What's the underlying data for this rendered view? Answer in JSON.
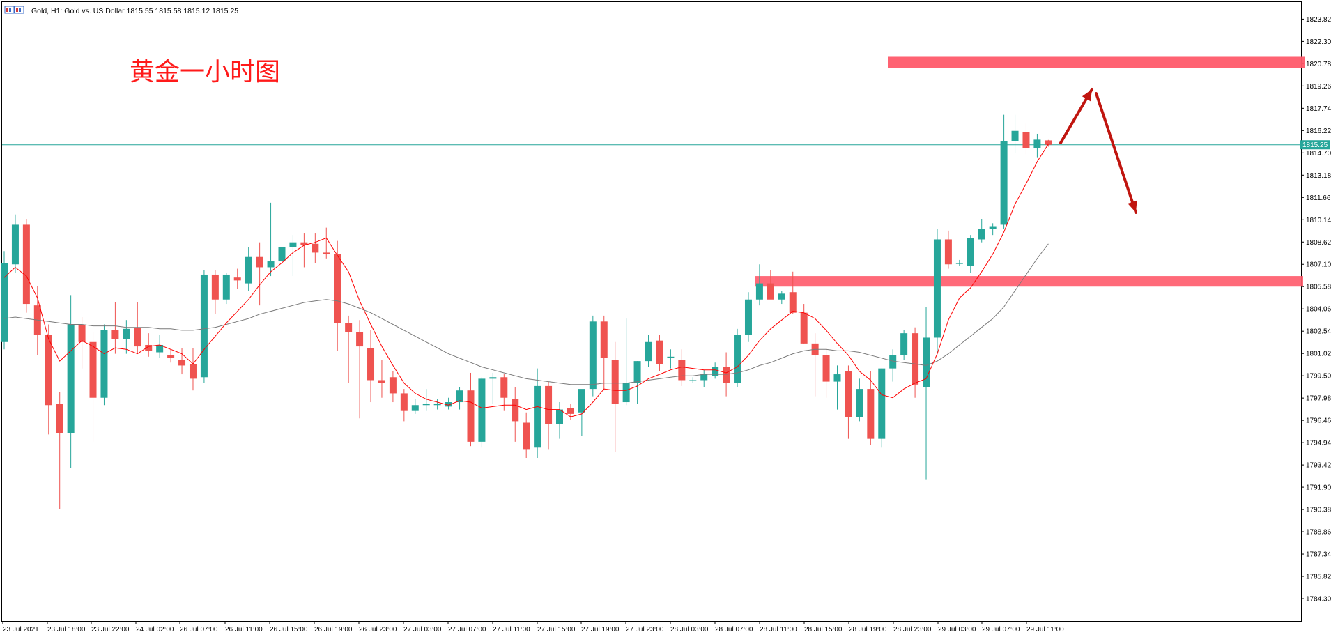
{
  "window": {
    "symbol_info": "Gold, H1:  Gold vs. US Dollar  1815.55 1815.58 1815.12 1815.25",
    "icon_name": "chart-window-icon"
  },
  "annotation": {
    "title": "黄金一小时图",
    "color": "#ff1a1a"
  },
  "colors": {
    "bull": "#26a69a",
    "bear": "#ef5350",
    "ma_fast": "#ff0000",
    "ma_slow": "#7a7a7a",
    "bid_line": "#26a69a",
    "zone": "#ff5a6a",
    "arrow": "#c0150f"
  },
  "chart_data": {
    "type": "candlestick",
    "title": "",
    "symbol": "Gold",
    "timeframe": "H1",
    "ylim": [
      1782.78,
      1824.98
    ],
    "y_ticks": [
      "1823.82",
      "1822.30",
      "1820.78",
      "1819.26",
      "1817.74",
      "1816.22",
      "1814.70",
      "1813.18",
      "1811.66",
      "1810.14",
      "1808.62",
      "1807.10",
      "1805.58",
      "1804.06",
      "1802.54",
      "1801.02",
      "1799.50",
      "1797.98",
      "1796.46",
      "1794.94",
      "1793.42",
      "1791.90",
      "1790.38",
      "1788.86",
      "1787.34",
      "1785.82",
      "1784.30"
    ],
    "x_ticks": [
      "23 Jul 2021",
      "23 Jul 18:00",
      "23 Jul 22:00",
      "24 Jul 02:00",
      "26 Jul 07:00",
      "26 Jul 11:00",
      "26 Jul 15:00",
      "26 Jul 19:00",
      "26 Jul 23:00",
      "27 Jul 03:00",
      "27 Jul 07:00",
      "27 Jul 11:00",
      "27 Jul 15:00",
      "27 Jul 19:00",
      "27 Jul 23:00",
      "28 Jul 03:00",
      "28 Jul 07:00",
      "28 Jul 11:00",
      "28 Jul 15:00",
      "28 Jul 19:00",
      "28 Jul 23:00",
      "29 Jul 03:00",
      "29 Jul 07:00",
      "29 Jul 11:00"
    ],
    "current_price": "1815.25",
    "candles": [
      {
        "o": 1801.8,
        "h": 1808.0,
        "l": 1801.3,
        "c": 1807.2
      },
      {
        "o": 1807.1,
        "h": 1810.5,
        "l": 1806.5,
        "c": 1809.8
      },
      {
        "o": 1809.8,
        "h": 1810.2,
        "l": 1803.8,
        "c": 1804.4
      },
      {
        "o": 1804.3,
        "h": 1805.6,
        "l": 1800.9,
        "c": 1802.3
      },
      {
        "o": 1802.3,
        "h": 1803.0,
        "l": 1795.5,
        "c": 1797.5
      },
      {
        "o": 1797.6,
        "h": 1798.4,
        "l": 1790.4,
        "c": 1795.6
      },
      {
        "o": 1795.6,
        "h": 1805.0,
        "l": 1793.2,
        "c": 1803.0
      },
      {
        "o": 1803.0,
        "h": 1803.5,
        "l": 1800.0,
        "c": 1801.8
      },
      {
        "o": 1801.8,
        "h": 1802.5,
        "l": 1795.0,
        "c": 1798.0
      },
      {
        "o": 1798.0,
        "h": 1803.0,
        "l": 1797.5,
        "c": 1802.6
      },
      {
        "o": 1802.6,
        "h": 1804.5,
        "l": 1801.0,
        "c": 1802.0
      },
      {
        "o": 1802.0,
        "h": 1803.3,
        "l": 1801.0,
        "c": 1802.7
      },
      {
        "o": 1802.8,
        "h": 1804.5,
        "l": 1801.0,
        "c": 1801.5
      },
      {
        "o": 1801.6,
        "h": 1802.4,
        "l": 1800.8,
        "c": 1801.2
      },
      {
        "o": 1801.1,
        "h": 1802.3,
        "l": 1800.7,
        "c": 1801.6
      },
      {
        "o": 1800.9,
        "h": 1801.3,
        "l": 1800.4,
        "c": 1800.7
      },
      {
        "o": 1800.6,
        "h": 1801.4,
        "l": 1799.6,
        "c": 1800.2
      },
      {
        "o": 1800.3,
        "h": 1801.4,
        "l": 1798.5,
        "c": 1799.3
      },
      {
        "o": 1799.4,
        "h": 1806.7,
        "l": 1799.0,
        "c": 1806.4
      },
      {
        "o": 1806.4,
        "h": 1806.7,
        "l": 1803.7,
        "c": 1804.7
      },
      {
        "o": 1804.7,
        "h": 1806.5,
        "l": 1804.4,
        "c": 1806.4
      },
      {
        "o": 1806.2,
        "h": 1806.8,
        "l": 1805.4,
        "c": 1806.0
      },
      {
        "o": 1805.8,
        "h": 1808.3,
        "l": 1805.3,
        "c": 1807.6
      },
      {
        "o": 1807.6,
        "h": 1808.6,
        "l": 1804.3,
        "c": 1806.9
      },
      {
        "o": 1806.9,
        "h": 1811.3,
        "l": 1806.3,
        "c": 1807.3
      },
      {
        "o": 1807.3,
        "h": 1809.1,
        "l": 1806.6,
        "c": 1808.3
      },
      {
        "o": 1808.3,
        "h": 1809.1,
        "l": 1806.3,
        "c": 1808.6
      },
      {
        "o": 1808.6,
        "h": 1809.2,
        "l": 1806.9,
        "c": 1808.4
      },
      {
        "o": 1808.5,
        "h": 1809.2,
        "l": 1807.2,
        "c": 1807.9
      },
      {
        "o": 1807.9,
        "h": 1809.6,
        "l": 1807.5,
        "c": 1807.8
      },
      {
        "o": 1807.8,
        "h": 1808.7,
        "l": 1801.2,
        "c": 1803.1
      },
      {
        "o": 1803.1,
        "h": 1803.6,
        "l": 1799.0,
        "c": 1802.5
      },
      {
        "o": 1802.5,
        "h": 1803.3,
        "l": 1796.6,
        "c": 1801.5
      },
      {
        "o": 1801.4,
        "h": 1802.6,
        "l": 1797.7,
        "c": 1799.2
      },
      {
        "o": 1799.2,
        "h": 1800.6,
        "l": 1798.0,
        "c": 1799.0
      },
      {
        "o": 1799.4,
        "h": 1799.8,
        "l": 1797.7,
        "c": 1798.3
      },
      {
        "o": 1798.3,
        "h": 1798.6,
        "l": 1796.4,
        "c": 1797.1
      },
      {
        "o": 1797.1,
        "h": 1797.9,
        "l": 1796.9,
        "c": 1797.5
      },
      {
        "o": 1797.5,
        "h": 1798.6,
        "l": 1797.1,
        "c": 1797.6
      },
      {
        "o": 1797.5,
        "h": 1797.9,
        "l": 1797.2,
        "c": 1797.6
      },
      {
        "o": 1797.4,
        "h": 1798.0,
        "l": 1797.2,
        "c": 1797.7
      },
      {
        "o": 1797.7,
        "h": 1798.7,
        "l": 1797.2,
        "c": 1798.5
      },
      {
        "o": 1798.5,
        "h": 1799.7,
        "l": 1794.7,
        "c": 1795.0
      },
      {
        "o": 1795.0,
        "h": 1799.4,
        "l": 1794.6,
        "c": 1799.3
      },
      {
        "o": 1799.3,
        "h": 1799.7,
        "l": 1797.6,
        "c": 1799.4
      },
      {
        "o": 1799.4,
        "h": 1799.6,
        "l": 1797.1,
        "c": 1798.0
      },
      {
        "o": 1797.9,
        "h": 1798.7,
        "l": 1795.0,
        "c": 1796.4
      },
      {
        "o": 1796.3,
        "h": 1797.0,
        "l": 1793.9,
        "c": 1794.5
      },
      {
        "o": 1794.6,
        "h": 1800.0,
        "l": 1793.9,
        "c": 1798.8
      },
      {
        "o": 1798.8,
        "h": 1799.1,
        "l": 1794.5,
        "c": 1796.2
      },
      {
        "o": 1796.2,
        "h": 1797.7,
        "l": 1795.2,
        "c": 1797.2
      },
      {
        "o": 1797.3,
        "h": 1797.6,
        "l": 1796.5,
        "c": 1796.9
      },
      {
        "o": 1797.0,
        "h": 1798.5,
        "l": 1795.4,
        "c": 1798.6
      },
      {
        "o": 1798.6,
        "h": 1803.6,
        "l": 1798.1,
        "c": 1803.2
      },
      {
        "o": 1803.2,
        "h": 1803.6,
        "l": 1798.5,
        "c": 1800.7
      },
      {
        "o": 1800.6,
        "h": 1801.8,
        "l": 1794.3,
        "c": 1797.6
      },
      {
        "o": 1797.7,
        "h": 1803.4,
        "l": 1797.5,
        "c": 1799.0
      },
      {
        "o": 1799.0,
        "h": 1800.5,
        "l": 1797.6,
        "c": 1800.5
      },
      {
        "o": 1800.5,
        "h": 1802.3,
        "l": 1800.1,
        "c": 1801.8
      },
      {
        "o": 1801.9,
        "h": 1802.3,
        "l": 1799.8,
        "c": 1800.3
      },
      {
        "o": 1800.7,
        "h": 1801.3,
        "l": 1800.0,
        "c": 1800.8
      },
      {
        "o": 1800.6,
        "h": 1801.3,
        "l": 1798.8,
        "c": 1799.2
      },
      {
        "o": 1799.2,
        "h": 1799.4,
        "l": 1799.0,
        "c": 1799.2
      },
      {
        "o": 1799.2,
        "h": 1799.9,
        "l": 1798.7,
        "c": 1799.6
      },
      {
        "o": 1799.5,
        "h": 1800.4,
        "l": 1799.3,
        "c": 1800.1
      },
      {
        "o": 1800.1,
        "h": 1801.1,
        "l": 1798.1,
        "c": 1799.0
      },
      {
        "o": 1799.0,
        "h": 1802.7,
        "l": 1798.7,
        "c": 1802.3
      },
      {
        "o": 1802.3,
        "h": 1805.2,
        "l": 1801.8,
        "c": 1804.7
      },
      {
        "o": 1804.7,
        "h": 1807.1,
        "l": 1804.3,
        "c": 1805.8
      },
      {
        "o": 1805.8,
        "h": 1806.7,
        "l": 1805.0,
        "c": 1804.7
      },
      {
        "o": 1804.7,
        "h": 1805.3,
        "l": 1804.4,
        "c": 1805.1
      },
      {
        "o": 1805.2,
        "h": 1806.6,
        "l": 1803.7,
        "c": 1803.8
      },
      {
        "o": 1803.8,
        "h": 1804.4,
        "l": 1801.7,
        "c": 1801.7
      },
      {
        "o": 1801.7,
        "h": 1802.4,
        "l": 1798.1,
        "c": 1800.9
      },
      {
        "o": 1800.9,
        "h": 1801.4,
        "l": 1798.0,
        "c": 1799.1
      },
      {
        "o": 1799.1,
        "h": 1800.2,
        "l": 1797.2,
        "c": 1799.6
      },
      {
        "o": 1799.8,
        "h": 1800.2,
        "l": 1795.2,
        "c": 1796.7
      },
      {
        "o": 1796.7,
        "h": 1799.3,
        "l": 1796.4,
        "c": 1798.6
      },
      {
        "o": 1798.6,
        "h": 1799.8,
        "l": 1794.8,
        "c": 1795.2
      },
      {
        "o": 1795.2,
        "h": 1800.0,
        "l": 1794.6,
        "c": 1800.0
      },
      {
        "o": 1800.0,
        "h": 1801.3,
        "l": 1799.1,
        "c": 1800.9
      },
      {
        "o": 1800.9,
        "h": 1802.6,
        "l": 1800.6,
        "c": 1802.4
      },
      {
        "o": 1802.4,
        "h": 1802.8,
        "l": 1798.0,
        "c": 1798.9
      },
      {
        "o": 1798.7,
        "h": 1804.2,
        "l": 1792.4,
        "c": 1802.1
      },
      {
        "o": 1802.1,
        "h": 1809.5,
        "l": 1801.1,
        "c": 1808.8
      },
      {
        "o": 1808.8,
        "h": 1809.4,
        "l": 1806.8,
        "c": 1807.1
      },
      {
        "o": 1807.2,
        "h": 1807.4,
        "l": 1807.0,
        "c": 1807.2
      },
      {
        "o": 1807.0,
        "h": 1809.1,
        "l": 1806.5,
        "c": 1808.9
      },
      {
        "o": 1808.8,
        "h": 1810.2,
        "l": 1808.6,
        "c": 1809.5
      },
      {
        "o": 1809.5,
        "h": 1809.9,
        "l": 1809.1,
        "c": 1809.7
      },
      {
        "o": 1809.8,
        "h": 1817.3,
        "l": 1809.5,
        "c": 1815.5
      },
      {
        "o": 1815.5,
        "h": 1817.3,
        "l": 1814.7,
        "c": 1816.2
      },
      {
        "o": 1816.1,
        "h": 1816.7,
        "l": 1814.6,
        "c": 1815.0
      },
      {
        "o": 1815.0,
        "h": 1816.0,
        "l": 1814.4,
        "c": 1815.6
      },
      {
        "o": 1815.55,
        "h": 1815.58,
        "l": 1815.12,
        "c": 1815.25
      }
    ],
    "ma_fast": [
      1806.2,
      1806.9,
      1806.3,
      1804.8,
      1802.0,
      1800.5,
      1801.2,
      1801.9,
      1801.5,
      1801.0,
      1801.4,
      1801.3,
      1801.0,
      1801.5,
      1801.6,
      1801.3,
      1801.0,
      1800.3,
      1801.3,
      1802.2,
      1803.1,
      1803.9,
      1804.7,
      1805.7,
      1806.6,
      1807.2,
      1807.9,
      1808.4,
      1808.6,
      1808.9,
      1807.7,
      1806.6,
      1804.6,
      1803.0,
      1801.5,
      1800.2,
      1799.0,
      1798.3,
      1797.9,
      1797.7,
      1797.5,
      1797.8,
      1797.7,
      1797.3,
      1797.4,
      1797.5,
      1797.5,
      1797.2,
      1797.4,
      1797.2,
      1797.2,
      1796.7,
      1796.9,
      1797.7,
      1798.6,
      1798.5,
      1798.5,
      1798.8,
      1799.3,
      1799.6,
      1799.9,
      1800.1,
      1800.0,
      1799.9,
      1799.9,
      1799.7,
      1800.1,
      1800.9,
      1801.9,
      1802.7,
      1803.3,
      1803.9,
      1803.8,
      1803.4,
      1802.6,
      1801.7,
      1800.9,
      1799.8,
      1799.2,
      1798.2,
      1798.0,
      1798.6,
      1799.0,
      1799.3,
      1801.0,
      1803.3,
      1804.8,
      1805.5,
      1806.6,
      1807.8,
      1809.3,
      1811.2,
      1812.6,
      1814.1,
      1815.3
    ],
    "ma_slow": [
      1803.4,
      1803.5,
      1803.4,
      1803.3,
      1803.2,
      1803.1,
      1803.0,
      1803.0,
      1802.9,
      1802.9,
      1802.9,
      1802.8,
      1802.8,
      1802.8,
      1802.7,
      1802.7,
      1802.6,
      1802.6,
      1802.7,
      1802.8,
      1803.0,
      1803.2,
      1803.4,
      1803.7,
      1803.9,
      1804.1,
      1804.3,
      1804.5,
      1804.6,
      1804.7,
      1804.6,
      1804.4,
      1804.1,
      1803.8,
      1803.4,
      1803.0,
      1802.6,
      1802.2,
      1801.8,
      1801.4,
      1801.0,
      1800.7,
      1800.4,
      1800.1,
      1799.9,
      1799.7,
      1799.5,
      1799.3,
      1799.2,
      1799.1,
      1799.0,
      1798.9,
      1798.9,
      1798.9,
      1799.0,
      1799.0,
      1799.0,
      1799.1,
      1799.2,
      1799.3,
      1799.4,
      1799.5,
      1799.5,
      1799.6,
      1799.6,
      1799.6,
      1799.7,
      1799.9,
      1800.2,
      1800.4,
      1800.7,
      1801.0,
      1801.2,
      1801.3,
      1801.3,
      1801.2,
      1801.2,
      1801.1,
      1800.9,
      1800.7,
      1800.5,
      1800.4,
      1800.3,
      1800.2,
      1800.5,
      1801.0,
      1801.6,
      1802.2,
      1802.8,
      1803.4,
      1804.2,
      1805.3,
      1806.4,
      1807.5,
      1808.5
    ]
  }
}
